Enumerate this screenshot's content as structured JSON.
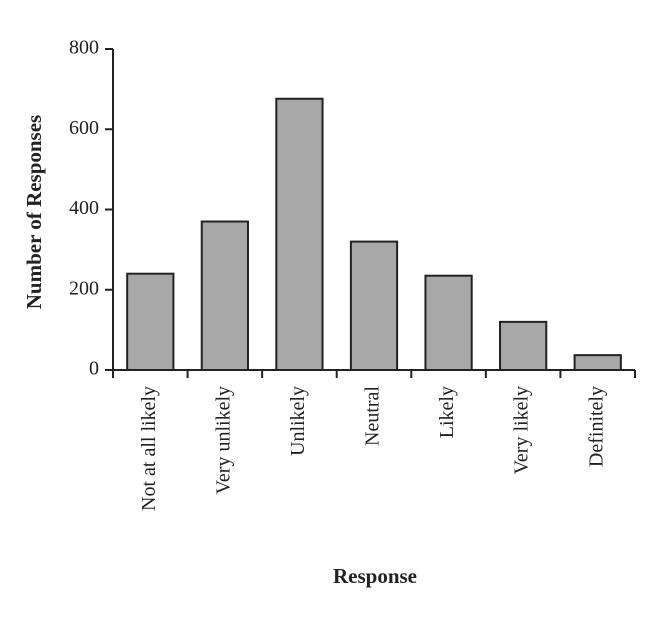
{
  "chart_data": {
    "type": "bar",
    "x_label": "Response",
    "y_label": "Number of Responses",
    "categories": [
      "Not at all likely",
      "Very unlikely",
      "Unlikely",
      "Neutral",
      "Likely",
      "Very likely",
      "Definitely"
    ],
    "values": [
      240,
      370,
      676,
      320,
      235,
      120,
      37
    ],
    "color": "#a8a8a8",
    "ylim": [
      0,
      800
    ],
    "yticks": [
      0,
      200,
      400,
      600,
      800
    ],
    "grid": false
  }
}
